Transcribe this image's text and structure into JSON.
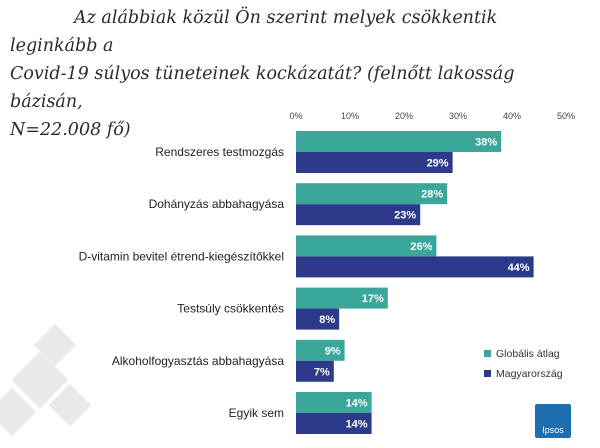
{
  "title_lines": [
    "Az alábbiak közül Ön szerint melyek csökkentik leginkább a",
    "Covid-19 súlyos tüneteinek kockázatát? (felnőtt lakosság bázisán,",
    "N=22.008 fő)"
  ],
  "colors": {
    "global": "#3aa79a",
    "hungary": "#2d3a8c"
  },
  "logo_text": "Ipsos",
  "chart_data": {
    "type": "bar",
    "orientation": "horizontal",
    "title": "Az alábbiak közül Ön szerint melyek csökkentik leginkább a Covid-19 súlyos tüneteinek kockázatát? (felnőtt lakosság bázisán, N=22.008 fő)",
    "categories": [
      "Rendszeres testmozgás",
      "Dohányzás abbahagyása",
      "D-vitamin bevitel étrend-kiegészítőkkel",
      "Testsúly csökkentés",
      "Alkoholfogyasztás abbahagyása",
      "Egyik sem"
    ],
    "series": [
      {
        "name": "Globális átlag",
        "values": [
          38,
          28,
          26,
          17,
          9,
          14
        ],
        "labels": [
          "38%",
          "28%",
          "26%",
          "17%",
          "9%",
          "14%"
        ]
      },
      {
        "name": "Magyarország",
        "values": [
          29,
          23,
          44,
          8,
          7,
          14
        ],
        "labels": [
          "29%",
          "23%",
          "44%",
          "8%",
          "7%",
          "14%"
        ]
      }
    ],
    "xlim": [
      0,
      50
    ],
    "xticks": [
      "0%",
      "10%",
      "20%",
      "30%",
      "40%",
      "50%"
    ],
    "grid": false,
    "legend": "bottom-right"
  }
}
